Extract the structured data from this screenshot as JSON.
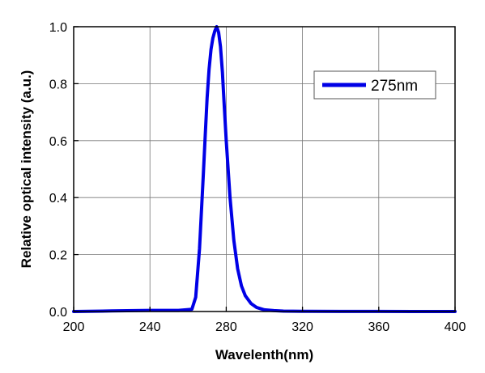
{
  "chart_data": {
    "type": "line",
    "xlabel": "Wavelenth(nm)",
    "ylabel": "Relative optical intensity (a.u.)",
    "xlim": [
      200,
      400
    ],
    "ylim": [
      0,
      1.0
    ],
    "x_ticks": [
      200,
      240,
      280,
      320,
      360,
      400
    ],
    "y_ticks": [
      0.0,
      0.2,
      0.4,
      0.6,
      0.8,
      1.0
    ],
    "x_tick_labels": [
      "200",
      "240",
      "280",
      "320",
      "360",
      "400"
    ],
    "y_tick_labels": [
      "0.0",
      "0.2",
      "0.4",
      "0.6",
      "0.8",
      "1.0"
    ],
    "grid": true,
    "legend_position": "top-right",
    "series": [
      {
        "name": "275nm",
        "color": "#0000e6",
        "x": [
          200,
          220,
          240,
          255,
          262,
          264,
          266,
          268,
          269,
          270,
          271,
          272,
          273,
          274,
          275,
          276,
          277,
          278,
          279,
          280,
          282,
          284,
          286,
          288,
          290,
          293,
          296,
          300,
          305,
          310,
          320,
          340,
          360,
          380,
          400
        ],
        "y": [
          0.0,
          0.002,
          0.004,
          0.004,
          0.008,
          0.05,
          0.22,
          0.48,
          0.62,
          0.75,
          0.85,
          0.92,
          0.96,
          0.985,
          1.0,
          0.98,
          0.93,
          0.84,
          0.72,
          0.6,
          0.4,
          0.25,
          0.15,
          0.09,
          0.055,
          0.028,
          0.014,
          0.006,
          0.003,
          0.0015,
          0.0008,
          0.0004,
          0.0002,
          0.0001,
          0.0
        ]
      }
    ]
  }
}
